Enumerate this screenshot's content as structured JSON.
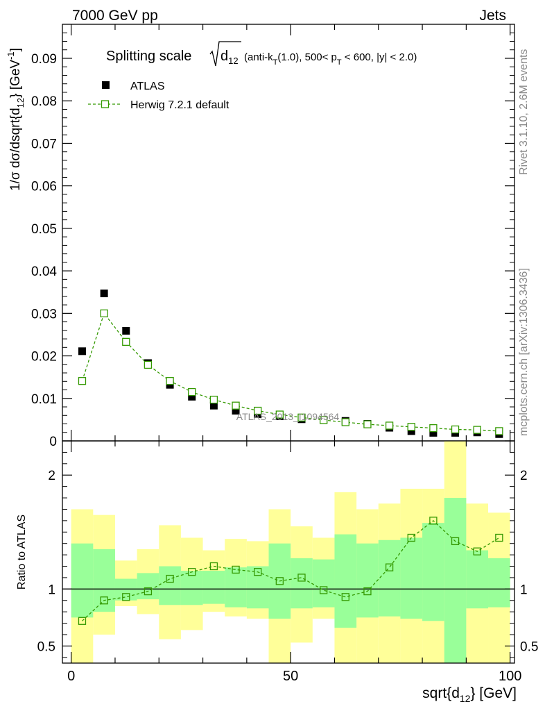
{
  "header": {
    "energy_label": "7000 GeV pp",
    "category_label": "Jets"
  },
  "side_labels": {
    "rivet": "Rivet 3.1.10,  2.6M events",
    "source": "mcplots.cern.ch [arXiv:1306.3436]"
  },
  "chart_data": [
    {
      "type": "scatter",
      "title_prefix": "Splitting scale",
      "title_var": "d",
      "title_var_sub": "12",
      "title_rest_1": " (anti-k",
      "title_rest_1_sub": "T",
      "title_rest_2": "(1.0), 500< p",
      "title_rest_2_sub": "T",
      "title_rest_3": " < 600, |y| < 2.0)",
      "ylabel": "1/σ dσ/dsqrt{d",
      "ylabel_sub": "12",
      "ylabel_rest": "} [GeV",
      "ylabel_sup": "-1",
      "ylabel_end": "]",
      "watermark": "ATLAS_2013_I1094564",
      "xlim": [
        -2,
        101
      ],
      "ylim": [
        0,
        0.098
      ],
      "yticks": [
        0,
        0.01,
        0.02,
        0.03,
        0.04,
        0.05,
        0.06,
        0.07,
        0.08,
        0.09
      ],
      "ytick_labels": [
        "0",
        "0.01",
        "0.02",
        "0.03",
        "0.04",
        "0.05",
        "0.06",
        "0.07",
        "0.08",
        "0.09"
      ],
      "legend_position": "top-left",
      "x": [
        2.5,
        7.5,
        12.5,
        17.5,
        22.5,
        27.5,
        32.5,
        37.5,
        42.5,
        47.5,
        52.5,
        57.5,
        62.5,
        67.5,
        72.5,
        77.5,
        82.5,
        87.5,
        92.5,
        97.5
      ],
      "series": [
        {
          "name": "ATLAS",
          "color": "#000000",
          "marker": "filled-square",
          "values": [
            0.0211,
            0.0347,
            0.0259,
            0.0183,
            0.0132,
            0.0104,
            0.0083,
            0.0071,
            0.0063,
            0.0058,
            0.0051,
            0.0049,
            0.0047,
            0.004,
            0.0031,
            0.0023,
            0.0019,
            0.0019,
            0.002,
            0.0016
          ]
        },
        {
          "name": "Herwig 7.2.1 default",
          "color": "#339900",
          "marker": "open-square",
          "line": "dashed",
          "values": [
            0.0141,
            0.03,
            0.0233,
            0.0179,
            0.0141,
            0.0115,
            0.0097,
            0.0083,
            0.0071,
            0.0062,
            0.0055,
            0.0049,
            0.0044,
            0.0039,
            0.0036,
            0.0033,
            0.003,
            0.0027,
            0.0026,
            0.0023
          ]
        }
      ]
    },
    {
      "type": "area",
      "ylabel": "Ratio to ATLAS",
      "xlabel": "sqrt{d",
      "xlabel_sub": "12",
      "xlabel_rest": "} [GeV]",
      "xlim": [
        -2,
        101
      ],
      "ylim": [
        0.35,
        2.3
      ],
      "xticks": [
        0,
        50,
        100
      ],
      "xtick_labels": [
        "0",
        "50",
        "100"
      ],
      "yticks": [
        0.5,
        1,
        2
      ],
      "ytick_labels": [
        "0.5",
        "1",
        "2"
      ],
      "bins": [
        [
          0,
          5
        ],
        [
          5,
          10
        ],
        [
          10,
          15
        ],
        [
          15,
          20
        ],
        [
          20,
          25
        ],
        [
          25,
          30
        ],
        [
          30,
          35
        ],
        [
          35,
          40
        ],
        [
          40,
          45
        ],
        [
          45,
          50
        ],
        [
          50,
          55
        ],
        [
          55,
          60
        ],
        [
          60,
          65
        ],
        [
          65,
          70
        ],
        [
          70,
          75
        ],
        [
          75,
          80
        ],
        [
          80,
          85
        ],
        [
          85,
          90
        ],
        [
          90,
          95
        ],
        [
          95,
          100
        ]
      ],
      "band_inner": {
        "color": "#99ff99",
        "lo": [
          0.75,
          0.8,
          0.9,
          0.91,
          0.86,
          0.86,
          0.87,
          0.84,
          0.83,
          0.74,
          0.83,
          0.84,
          0.66,
          0.75,
          0.76,
          0.74,
          0.72,
          0.35,
          0.83,
          0.84
        ],
        "hi": [
          1.4,
          1.35,
          1.09,
          1.14,
          1.2,
          1.16,
          1.16,
          1.19,
          1.2,
          1.4,
          1.27,
          1.26,
          1.48,
          1.4,
          1.43,
          1.45,
          1.58,
          1.8,
          1.34,
          1.27
        ]
      },
      "band_outer": {
        "color": "#ffff99",
        "lo": [
          0.35,
          0.6,
          0.85,
          0.78,
          0.56,
          0.64,
          0.8,
          0.76,
          0.74,
          0.35,
          0.53,
          0.74,
          0.35,
          0.35,
          0.35,
          0.35,
          0.35,
          0.35,
          0.35,
          0.35
        ],
        "hi": [
          1.7,
          1.65,
          1.25,
          1.35,
          1.56,
          1.45,
          1.34,
          1.44,
          1.42,
          1.7,
          1.55,
          1.45,
          1.85,
          1.7,
          1.75,
          1.88,
          1.88,
          2.3,
          1.75,
          1.67
        ]
      },
      "reference_line": 1,
      "series": [
        {
          "name": "Herwig 7.2.1 default",
          "color": "#339900",
          "marker": "open-square",
          "line": "dashed",
          "values": [
            0.72,
            0.9,
            0.93,
            0.98,
            1.09,
            1.15,
            1.2,
            1.17,
            1.15,
            1.07,
            1.1,
            0.99,
            0.93,
            0.98,
            1.19,
            1.45,
            1.6,
            1.42,
            1.33,
            1.45
          ]
        }
      ]
    }
  ]
}
